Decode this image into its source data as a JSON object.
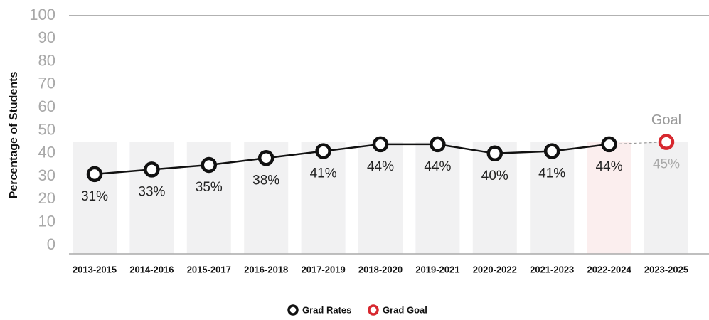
{
  "chart_data": {
    "type": "line",
    "y_axis_label": "Percentage of Students",
    "annotation": "Goal",
    "categories": [
      "2013-2015",
      "2014-2016",
      "2015-2017",
      "2016-2018",
      "2017-2019",
      "2018-2020",
      "2019-2021",
      "2020-2022",
      "2021-2023",
      "2022-2024",
      "2023-2025"
    ],
    "series": [
      {
        "name": "Grad Rates",
        "color": "#111111",
        "values": [
          31,
          33,
          35,
          38,
          41,
          44,
          44,
          40,
          41,
          44,
          null
        ],
        "value_labels": [
          "31%",
          "33%",
          "35%",
          "38%",
          "41%",
          "44%",
          "44%",
          "40%",
          "41%",
          "44%",
          null
        ]
      },
      {
        "name": "Grad Goal",
        "color": "#d7282f",
        "values": [
          null,
          null,
          null,
          null,
          null,
          null,
          null,
          null,
          null,
          null,
          45
        ],
        "value_labels": [
          null,
          null,
          null,
          null,
          null,
          null,
          null,
          null,
          null,
          null,
          "45%"
        ]
      }
    ],
    "ylim": [
      0,
      100
    ],
    "yticks": [
      0,
      10,
      20,
      30,
      40,
      50,
      60,
      70,
      80,
      90,
      100
    ]
  }
}
